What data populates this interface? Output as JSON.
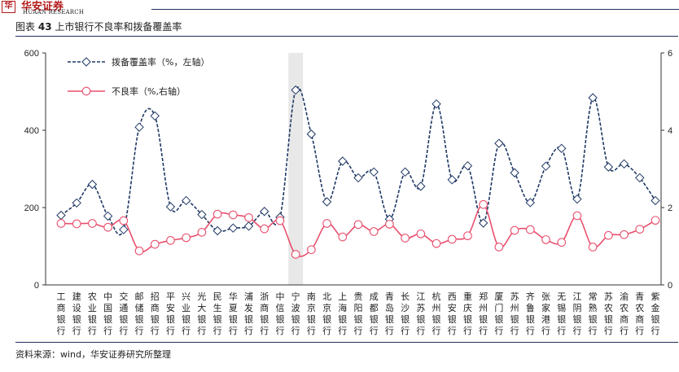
{
  "brand": {
    "name_cn": "华安证券",
    "name_en": "HUAAN RESEARCH",
    "logo_glyph": "华"
  },
  "figure": {
    "label": "图表",
    "number": "43",
    "title": "上市银行不良率和拨备覆盖率"
  },
  "source": "资料来源：wind，华安证券研究所整理",
  "chart_data": {
    "type": "line",
    "categories": [
      "工商银行",
      "建设银行",
      "农业银行",
      "中国银行",
      "交通银行",
      "邮储银行",
      "招商银行",
      "平安银行",
      "兴业银行",
      "光大银行",
      "民生银行",
      "华夏银行",
      "浦发银行",
      "浙商银行",
      "中信银行",
      "宁波银行",
      "南京银行",
      "北京银行",
      "上海银行",
      "贵阳银行",
      "成都银行",
      "青岛银行",
      "长沙银行",
      "江苏银行",
      "杭州银行",
      "西安银行",
      "重庆银行",
      "郑州银行",
      "厦门银行",
      "苏州银行",
      "齐鲁银行",
      "张家港行",
      "无锡银行",
      "江阴银行",
      "常熟银行",
      "苏农银行",
      "渝农商行",
      "青农商行",
      "紫金银行"
    ],
    "series": [
      {
        "name": "拨备覆盖率（%，左轴）",
        "axis": "left",
        "color": "#1f3864",
        "marker": "diamond",
        "line_style": "dashed",
        "values": [
          180,
          212,
          260,
          178,
          143,
          408,
          437,
          202,
          218,
          182,
          140,
          147,
          152,
          190,
          175,
          504,
          390,
          215,
          320,
          277,
          292,
          170,
          292,
          255,
          468,
          272,
          308,
          160,
          366,
          290,
          213,
          307,
          353,
          222,
          484,
          305,
          313,
          277,
          218
        ]
      },
      {
        "name": "不良率（%,右轴）",
        "axis": "right",
        "color": "#e8506e",
        "marker": "circle",
        "line_style": "solid",
        "values": [
          1.59,
          1.58,
          1.59,
          1.49,
          1.66,
          0.88,
          1.05,
          1.15,
          1.22,
          1.36,
          1.83,
          1.81,
          1.74,
          1.45,
          1.66,
          0.79,
          0.91,
          1.59,
          1.24,
          1.56,
          1.38,
          1.57,
          1.21,
          1.32,
          1.07,
          1.18,
          1.27,
          2.08,
          0.98,
          1.41,
          1.43,
          1.17,
          1.1,
          1.79,
          0.98,
          1.28,
          1.3,
          1.44,
          1.67
        ]
      }
    ],
    "y_left": {
      "min": 0,
      "max": 600,
      "ticks": [
        0,
        200,
        400,
        600
      ]
    },
    "y_right": {
      "min": 0,
      "max": 6,
      "ticks": [
        0,
        2,
        4,
        6
      ]
    },
    "highlight_category": "宁波银行",
    "legend_position": "top-left",
    "grid": false
  }
}
